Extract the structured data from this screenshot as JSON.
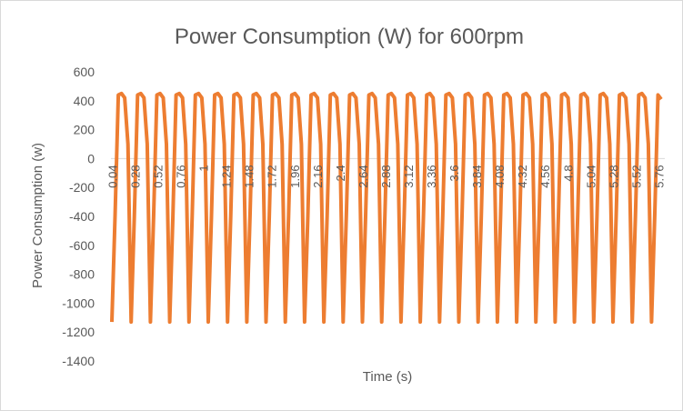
{
  "chart_data": {
    "type": "line",
    "title": "Power Consumption (W) for 600rpm",
    "xlabel": "Time (s)",
    "ylabel": "Power Consumption (w)",
    "ylim": [
      -1400,
      600
    ],
    "yticks": [
      600,
      400,
      200,
      0,
      -200,
      -400,
      -600,
      -800,
      -1000,
      -1200,
      -1400
    ],
    "grid": false,
    "legend": "none",
    "x_tick_labels": [
      "0.04",
      "0.28",
      "0.52",
      "0.76",
      "1",
      "1.24",
      "1.48",
      "1.72",
      "1.96",
      "2.16",
      "2.4",
      "2.64",
      "2.88",
      "3.12",
      "3.36",
      "3.6",
      "3.84",
      "4.08",
      "4.32",
      "4.56",
      "4.8",
      "5.04",
      "5.28",
      "5.52",
      "5.76"
    ],
    "colors": {
      "series": "#ED7D31",
      "text": "#595959",
      "axis": "#d9d9d9"
    },
    "series": [
      {
        "period_s": 0.2,
        "cycles": 28.5,
        "cycle_shape": [
          -1130,
          -400,
          440,
          450,
          420,
          100
        ],
        "values_note_min": -1130,
        "values_note_max": 450,
        "last_value": 410
      }
    ]
  }
}
